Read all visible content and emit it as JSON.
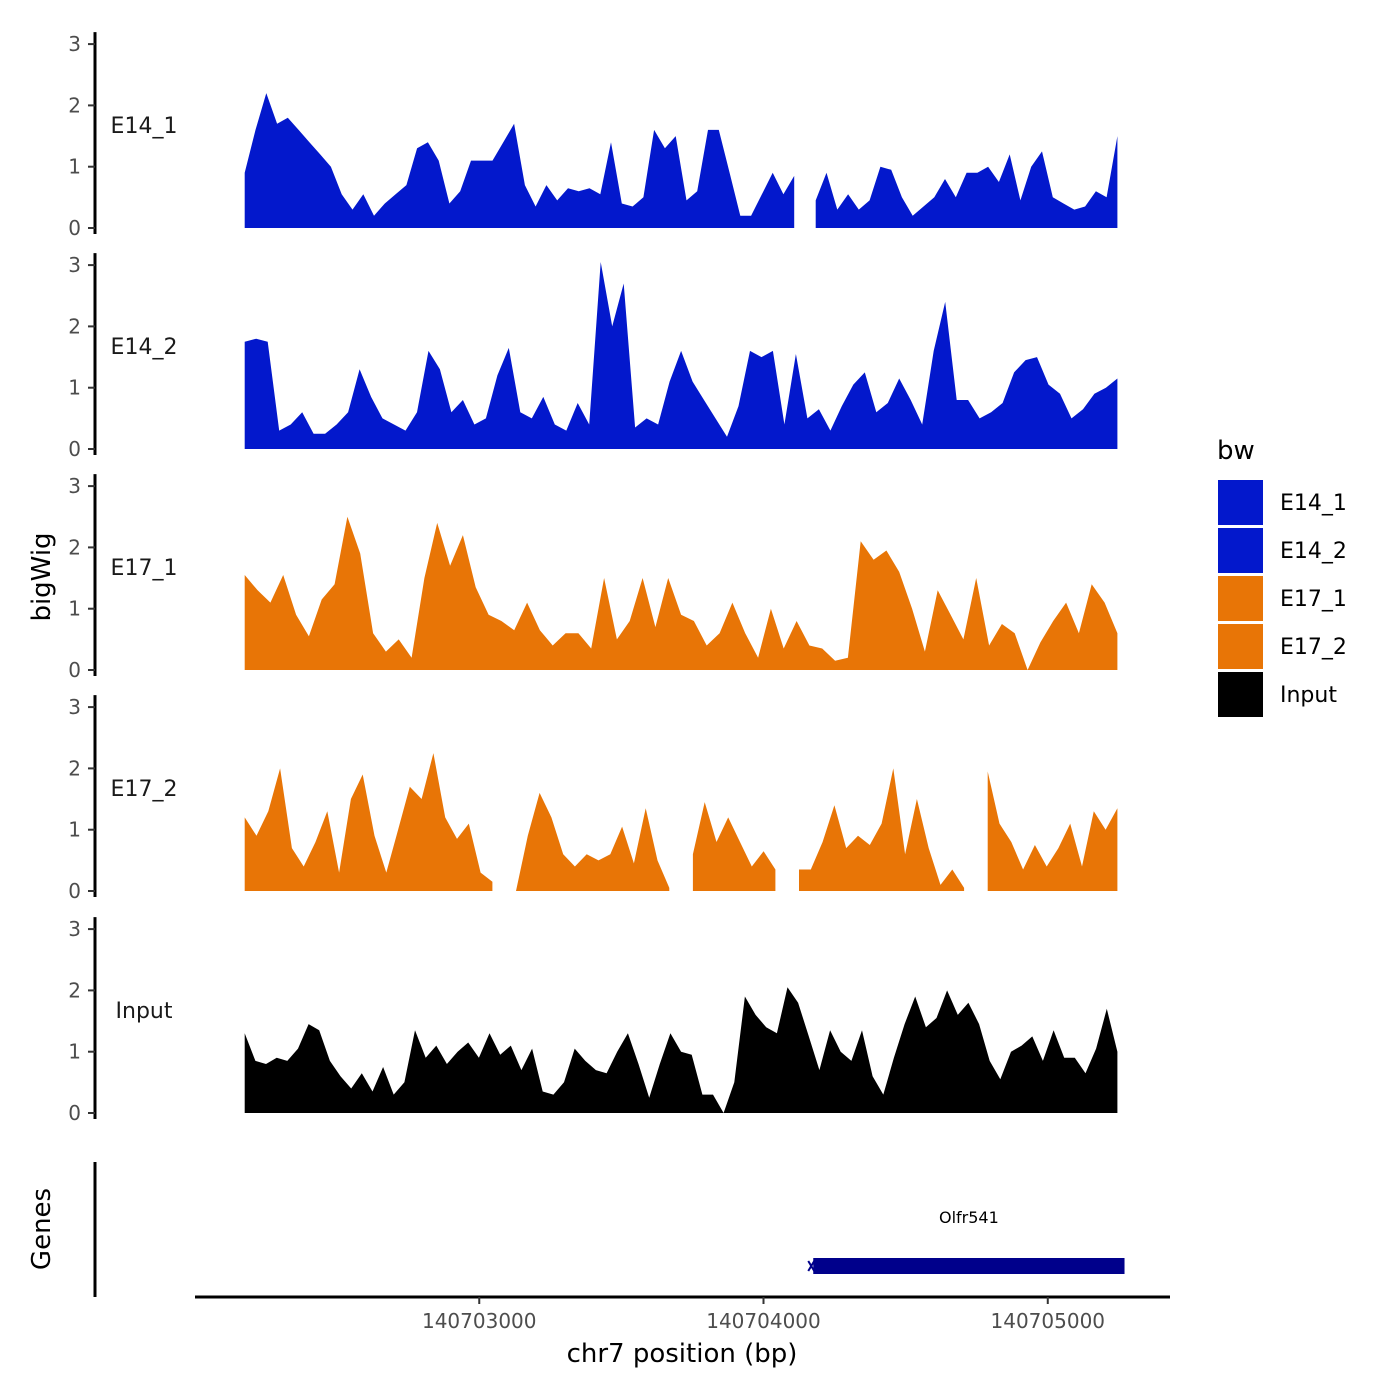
{
  "chart_data": {
    "type": "area",
    "title": "",
    "xlabel": "chr7 position (bp)",
    "ylabel": "bigWig",
    "genes_label": "Genes",
    "xlim": [
      140702000,
      140705430
    ],
    "ylim": [
      0,
      3
    ],
    "y_ticks": [
      "0",
      "1",
      "2",
      "3"
    ],
    "x_ticks": [
      {
        "value": 140703000,
        "label": "140703000"
      },
      {
        "value": 140704000,
        "label": "140704000"
      },
      {
        "value": 140705000,
        "label": "140705000"
      }
    ],
    "legend": {
      "title": "bw",
      "placement": "right",
      "entries": [
        {
          "label": "E14_1",
          "color": "#0318CC"
        },
        {
          "label": "E14_2",
          "color": "#0318CC"
        },
        {
          "label": "E17_1",
          "color": "#E87506"
        },
        {
          "label": "E17_2",
          "color": "#E87506"
        },
        {
          "label": "Input",
          "color": "#000000"
        }
      ]
    },
    "x_start": 140702175,
    "x_end": 140705245,
    "series": [
      {
        "name": "E14_1",
        "color": "#0318CC",
        "values": [
          0.9,
          1.6,
          2.2,
          1.7,
          1.8,
          1.6,
          1.4,
          1.2,
          1.0,
          0.55,
          0.3,
          0.55,
          0.2,
          0.4,
          0.55,
          0.7,
          1.3,
          1.4,
          1.1,
          0.4,
          0.6,
          1.1,
          1.1,
          1.1,
          1.4,
          1.7,
          0.7,
          0.35,
          0.7,
          0.45,
          0.65,
          0.6,
          0.65,
          0.55,
          1.4,
          0.4,
          0.35,
          0.5,
          1.6,
          1.3,
          1.5,
          0.45,
          0.6,
          1.6,
          1.6,
          0.9,
          0.2,
          0.2,
          0.55,
          0.9,
          0.55,
          0.85,
          null,
          0.45,
          0.9,
          0.3,
          0.55,
          0.3,
          0.45,
          1.0,
          0.95,
          0.5,
          0.2,
          0.35,
          0.5,
          0.8,
          0.5,
          0.9,
          0.9,
          1.0,
          0.75,
          1.2,
          0.45,
          1.0,
          1.25,
          0.5,
          0.4,
          0.3,
          0.35,
          0.6,
          0.5,
          1.5
        ]
      },
      {
        "name": "E14_2",
        "color": "#0318CC",
        "values": [
          1.75,
          1.8,
          1.75,
          0.3,
          0.4,
          0.6,
          0.25,
          0.25,
          0.4,
          0.6,
          1.3,
          0.85,
          0.5,
          0.4,
          0.3,
          0.6,
          1.6,
          1.3,
          0.6,
          0.8,
          0.4,
          0.5,
          1.2,
          1.65,
          0.6,
          0.5,
          0.85,
          0.4,
          0.3,
          0.75,
          0.4,
          3.05,
          2.0,
          2.7,
          0.35,
          0.5,
          0.4,
          1.1,
          1.6,
          1.1,
          0.8,
          0.5,
          0.2,
          0.7,
          1.6,
          1.5,
          1.6,
          0.4,
          1.55,
          0.5,
          0.65,
          0.3,
          0.7,
          1.05,
          1.25,
          0.6,
          0.75,
          1.15,
          0.8,
          0.4,
          1.6,
          2.4,
          0.8,
          0.8,
          0.5,
          0.6,
          0.75,
          1.25,
          1.45,
          1.5,
          1.05,
          0.9,
          0.5,
          0.65,
          0.9,
          1.0,
          1.15
        ]
      },
      {
        "name": "E17_1",
        "color": "#E87506",
        "values": [
          1.55,
          1.3,
          1.1,
          1.55,
          0.9,
          0.55,
          1.15,
          1.4,
          2.5,
          1.9,
          0.6,
          0.3,
          0.5,
          0.2,
          1.5,
          2.4,
          1.7,
          2.2,
          1.35,
          0.9,
          0.8,
          0.65,
          1.1,
          0.65,
          0.4,
          0.6,
          0.6,
          0.35,
          1.5,
          0.5,
          0.8,
          1.5,
          0.7,
          1.5,
          0.9,
          0.8,
          0.4,
          0.6,
          1.1,
          0.6,
          0.2,
          1.0,
          0.35,
          0.8,
          0.4,
          0.35,
          0.15,
          0.2,
          2.1,
          1.8,
          1.95,
          1.6,
          1.0,
          0.3,
          1.3,
          0.9,
          0.5,
          1.5,
          0.4,
          0.75,
          0.6,
          0.0,
          0.45,
          0.8,
          1.1,
          0.6,
          1.4,
          1.1,
          0.6
        ]
      },
      {
        "name": "E17_2",
        "color": "#E87506",
        "values": [
          1.2,
          0.9,
          1.3,
          2.0,
          0.7,
          0.4,
          0.8,
          1.3,
          0.3,
          1.5,
          1.9,
          0.9,
          0.3,
          1.0,
          1.7,
          1.5,
          2.25,
          1.2,
          0.85,
          1.1,
          0.3,
          0.15,
          null,
          0.0,
          0.9,
          1.6,
          1.2,
          0.6,
          0.4,
          0.6,
          0.5,
          0.6,
          1.05,
          0.45,
          1.35,
          0.5,
          0.05,
          null,
          0.6,
          1.45,
          0.8,
          1.2,
          0.8,
          0.4,
          0.65,
          0.35,
          null,
          0.35,
          0.35,
          0.8,
          1.4,
          0.7,
          0.9,
          0.75,
          1.1,
          2.0,
          0.6,
          1.5,
          0.7,
          0.1,
          0.35,
          0.05,
          null,
          1.95,
          1.1,
          0.8,
          0.35,
          0.75,
          0.4,
          0.7,
          1.1,
          0.4,
          1.3,
          1.0,
          1.35
        ]
      },
      {
        "name": "Input",
        "color": "#000000",
        "values": [
          1.3,
          0.85,
          0.8,
          0.9,
          0.85,
          1.05,
          1.45,
          1.35,
          0.85,
          0.6,
          0.4,
          0.65,
          0.35,
          0.75,
          0.3,
          0.5,
          1.35,
          0.9,
          1.1,
          0.8,
          1.0,
          1.15,
          0.9,
          1.3,
          0.95,
          1.1,
          0.7,
          1.05,
          0.35,
          0.3,
          0.5,
          1.05,
          0.85,
          0.7,
          0.65,
          1.0,
          1.3,
          0.8,
          0.25,
          0.8,
          1.3,
          1.0,
          0.95,
          0.3,
          0.3,
          0.0,
          0.5,
          1.9,
          1.6,
          1.4,
          1.3,
          2.05,
          1.8,
          1.25,
          0.7,
          1.35,
          1.0,
          0.85,
          1.35,
          0.6,
          0.3,
          0.9,
          1.45,
          1.9,
          1.4,
          1.55,
          2.0,
          1.6,
          1.8,
          1.45,
          0.85,
          0.55,
          1.0,
          1.1,
          1.25,
          0.85,
          1.35,
          0.9,
          0.9,
          0.65,
          1.05,
          1.7,
          1.0
        ]
      }
    ],
    "genes": [
      {
        "name": "Olfr541",
        "start": 140704175,
        "end": 140705270,
        "color": "#00008B"
      }
    ]
  }
}
